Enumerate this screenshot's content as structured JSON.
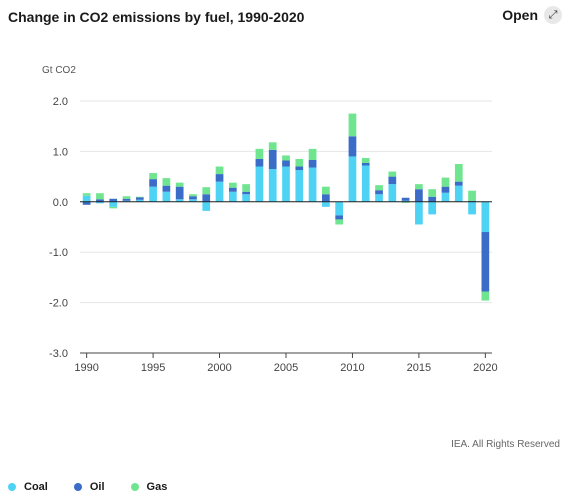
{
  "header": {
    "title": "Change in CO2 emissions by fuel, 1990-2020",
    "open_label": "Open",
    "open_icon": "expand-icon"
  },
  "credit": "IEA. All Rights Reserved",
  "colors": {
    "Coal": "#4fd3f5",
    "Oil": "#3b6cc7",
    "Gas": "#6fe58f"
  },
  "legend": [
    {
      "name": "Coal",
      "color": "#4fd3f5"
    },
    {
      "name": "Oil",
      "color": "#3b6cc7"
    },
    {
      "name": "Gas",
      "color": "#6fe58f"
    }
  ],
  "chart_data": {
    "type": "bar",
    "stacked": true,
    "title": "Change in CO2 emissions by fuel, 1990-2020",
    "ylabel": "Gt CO2",
    "ylim": [
      -3.0,
      2.0
    ],
    "yticks": [
      2.0,
      1.0,
      0.0,
      -1.0,
      -2.0,
      -3.0
    ],
    "ytick_labels": [
      "2.0",
      "1.0",
      "0.0",
      "-1.0",
      "-2.0",
      "-3.0"
    ],
    "xticks": [
      1990,
      1995,
      2000,
      2005,
      2010,
      2015,
      2020
    ],
    "grid": true,
    "legend_position": "bottom-left",
    "categories": [
      1990,
      1991,
      1992,
      1993,
      1994,
      1995,
      1996,
      1997,
      1998,
      1999,
      2000,
      2001,
      2002,
      2003,
      2004,
      2005,
      2006,
      2007,
      2008,
      2009,
      2010,
      2011,
      2012,
      2013,
      2014,
      2015,
      2016,
      2017,
      2018,
      2019,
      2020
    ],
    "series": [
      {
        "name": "Coal",
        "values": [
          0.12,
          -0.03,
          -0.1,
          0.02,
          0.04,
          0.3,
          0.2,
          0.05,
          0.05,
          -0.18,
          0.4,
          0.2,
          0.15,
          0.7,
          0.65,
          0.7,
          0.63,
          0.68,
          -0.1,
          -0.27,
          0.9,
          0.72,
          0.15,
          0.35,
          0.02,
          -0.45,
          -0.25,
          0.18,
          0.32,
          -0.25,
          -0.6
        ]
      },
      {
        "name": "Oil",
        "values": [
          -0.06,
          0.05,
          0.06,
          0.04,
          0.05,
          0.15,
          0.12,
          0.25,
          0.06,
          0.15,
          0.15,
          0.08,
          0.05,
          0.15,
          0.38,
          0.12,
          0.07,
          0.15,
          0.15,
          -0.08,
          0.4,
          0.05,
          0.08,
          0.15,
          0.06,
          0.25,
          0.1,
          0.12,
          0.08,
          0.02,
          -1.18
        ]
      },
      {
        "name": "Gas",
        "values": [
          0.05,
          0.12,
          -0.03,
          0.05,
          0.01,
          0.12,
          0.15,
          0.08,
          0.04,
          0.14,
          0.15,
          0.1,
          0.15,
          0.2,
          0.15,
          0.1,
          0.15,
          0.22,
          0.15,
          -0.1,
          0.45,
          0.1,
          0.1,
          0.1,
          -0.02,
          0.1,
          0.15,
          0.18,
          0.35,
          0.2,
          -0.18
        ]
      }
    ]
  }
}
